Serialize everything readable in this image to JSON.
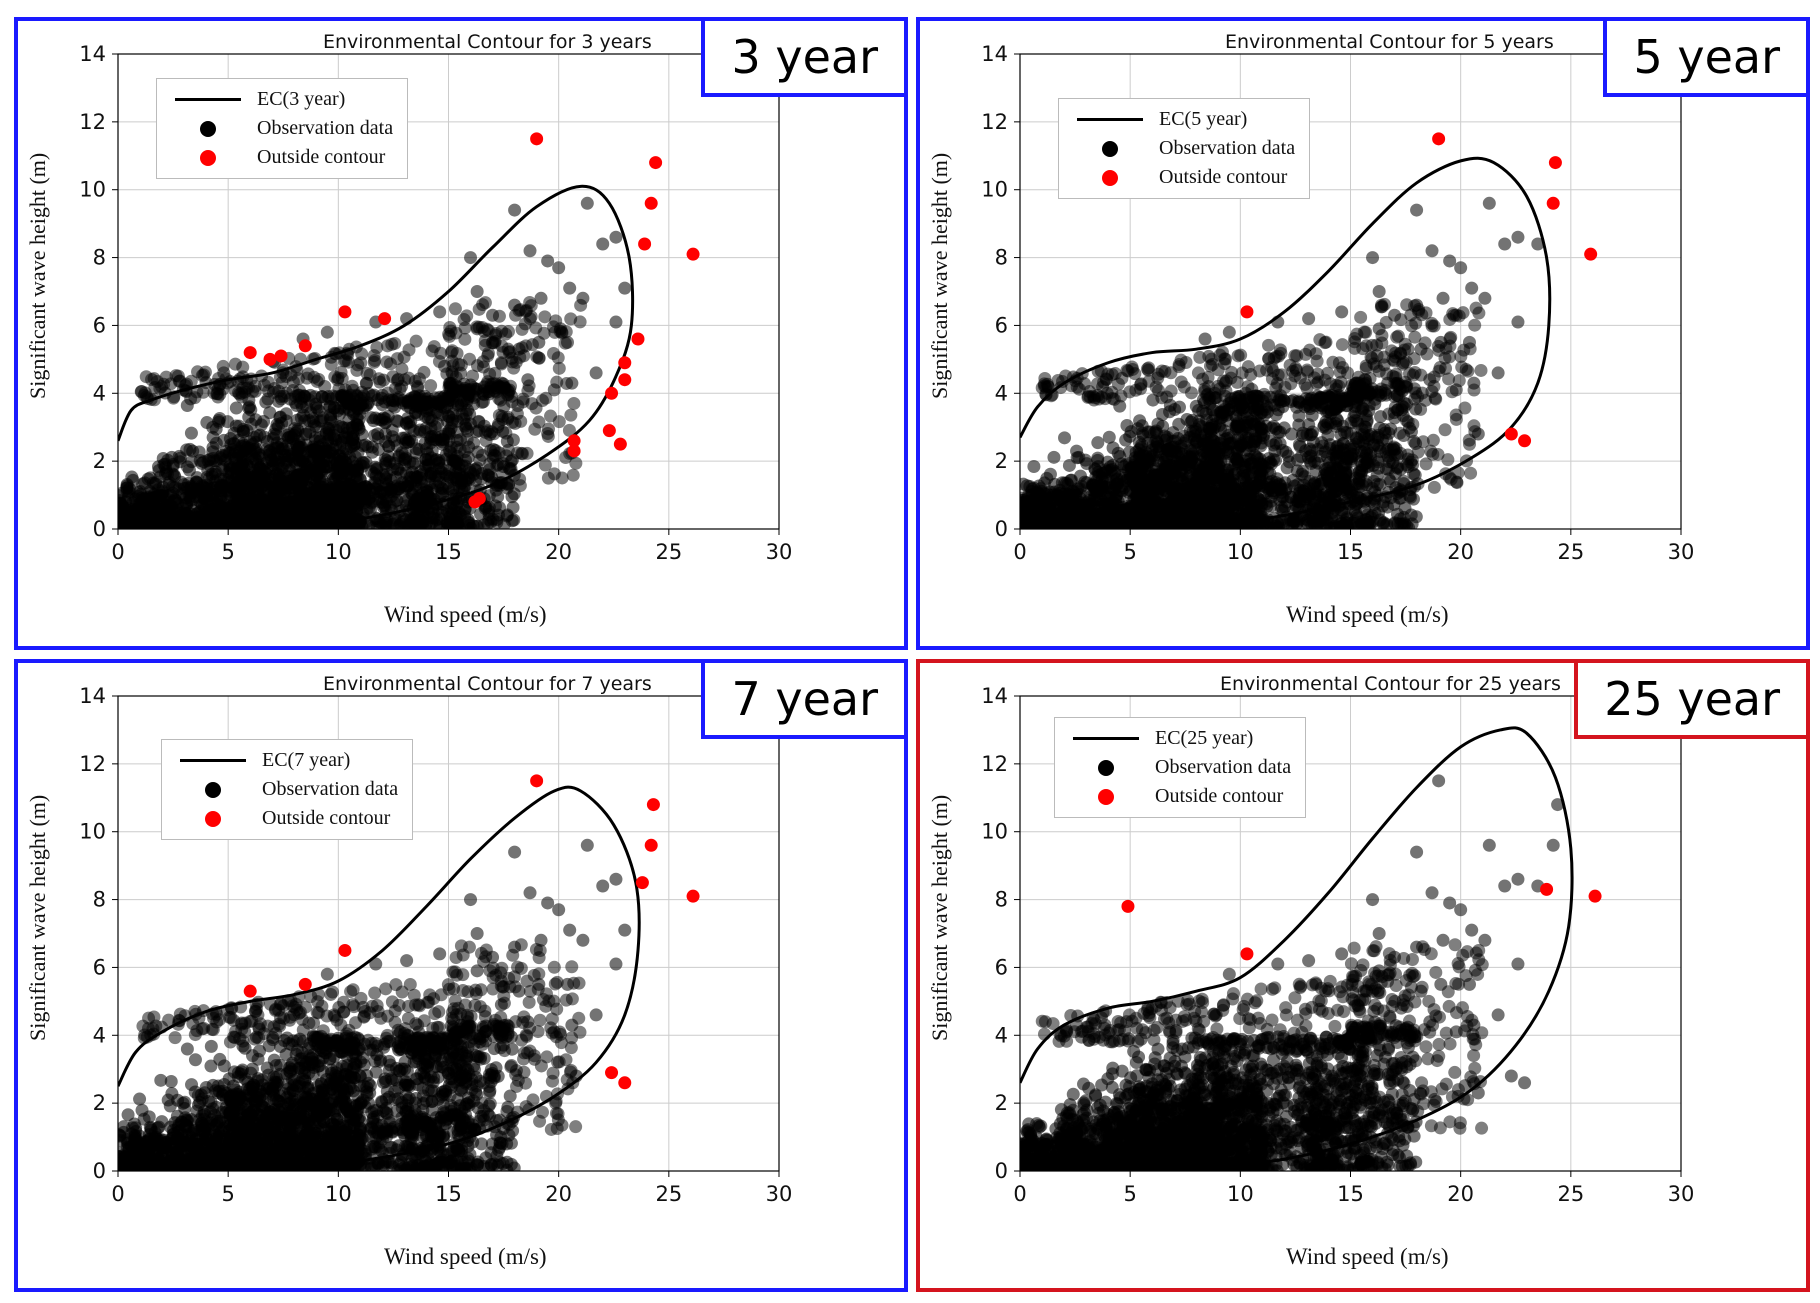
{
  "chart_data": [
    {
      "type": "scatter",
      "badge": "3 year",
      "title": "Environmental Contour for 3 years",
      "xlabel": "Wind speed (m/s)",
      "ylabel": "Significant wave height (m)",
      "xlim": [
        0,
        30
      ],
      "ylim": [
        0,
        14
      ],
      "xticks": [
        "0",
        "5",
        "10",
        "15",
        "20",
        "25",
        "30"
      ],
      "yticks": [
        "0",
        "2",
        "4",
        "6",
        "8",
        "10",
        "12",
        "14"
      ],
      "legend": [
        "EC(3 year)",
        "Observation data",
        "Outside contour"
      ],
      "contour": [
        [
          0,
          2.6
        ],
        [
          0.6,
          3.5
        ],
        [
          1.5,
          3.8
        ],
        [
          3,
          4.1
        ],
        [
          5,
          4.4
        ],
        [
          7,
          4.6
        ],
        [
          9,
          5.0
        ],
        [
          11,
          5.4
        ],
        [
          13,
          6.0
        ],
        [
          15,
          7.0
        ],
        [
          17,
          8.3
        ],
        [
          19,
          9.5
        ],
        [
          21,
          10.1
        ],
        [
          22.3,
          9.6
        ],
        [
          23.2,
          8.0
        ],
        [
          23.3,
          6.0
        ],
        [
          22.6,
          4.5
        ],
        [
          21.4,
          3.2
        ],
        [
          19.5,
          2.2
        ],
        [
          17,
          1.3
        ],
        [
          14,
          0.7
        ],
        [
          11,
          0.3
        ],
        [
          8,
          0.1
        ],
        [
          5,
          0.02
        ],
        [
          2,
          0.0
        ],
        [
          0,
          0.0
        ]
      ],
      "outside_points": [
        [
          6,
          5.2
        ],
        [
          6.9,
          5.0
        ],
        [
          7.4,
          5.1
        ],
        [
          8.5,
          5.4
        ],
        [
          10.3,
          6.4
        ],
        [
          12.1,
          6.2
        ],
        [
          16.2,
          0.8
        ],
        [
          16.4,
          0.9
        ],
        [
          19,
          11.5
        ],
        [
          20.7,
          2.6
        ],
        [
          20.7,
          2.3
        ],
        [
          22.4,
          4.0
        ],
        [
          22.8,
          2.5
        ],
        [
          22.3,
          2.9
        ],
        [
          23,
          4.4
        ],
        [
          23,
          4.9
        ],
        [
          23.6,
          5.6
        ],
        [
          23.9,
          8.4
        ],
        [
          24.2,
          9.6
        ],
        [
          24.4,
          10.8
        ],
        [
          26.1,
          8.1
        ]
      ],
      "observation_points_extra": [
        [
          16,
          8
        ],
        [
          18,
          9.4
        ],
        [
          18.7,
          8.2
        ],
        [
          19.5,
          7.9
        ],
        [
          20,
          7.7
        ],
        [
          21.3,
          9.6
        ],
        [
          22,
          8.4
        ],
        [
          22.6,
          8.6
        ],
        [
          23,
          7.1
        ],
        [
          20.5,
          7.1
        ],
        [
          19.2,
          6.8
        ],
        [
          18,
          6.6
        ],
        [
          17,
          6.3
        ],
        [
          16.3,
          7.0
        ],
        [
          21.1,
          6.8
        ],
        [
          22.6,
          6.1
        ],
        [
          20.4,
          5.5
        ],
        [
          19.1,
          5.5
        ],
        [
          18.2,
          5.3
        ],
        [
          17.4,
          4.9
        ],
        [
          16.3,
          5.9
        ],
        [
          14.6,
          6.4
        ],
        [
          13.1,
          6.2
        ],
        [
          11.7,
          6.1
        ],
        [
          9.5,
          5.8
        ],
        [
          8.4,
          5.6
        ],
        [
          21.7,
          4.6
        ],
        [
          20.6,
          4.3
        ],
        [
          19.8,
          4.1
        ],
        [
          18.6,
          4.4
        ],
        [
          17.5,
          4.2
        ]
      ]
    },
    {
      "type": "scatter",
      "badge": "5 year",
      "title": "Environmental Contour for 5 years",
      "xlabel": "Wind speed (m/s)",
      "ylabel": "Significant wave height (m)",
      "xlim": [
        0,
        30
      ],
      "ylim": [
        0,
        14
      ],
      "xticks": [
        "0",
        "5",
        "10",
        "15",
        "20",
        "25",
        "30"
      ],
      "yticks": [
        "0",
        "2",
        "4",
        "6",
        "8",
        "10",
        "12",
        "14"
      ],
      "legend": [
        "EC(5 year)",
        "Observation data",
        "Outside contour"
      ],
      "contour": [
        [
          0,
          2.7
        ],
        [
          0.8,
          3.6
        ],
        [
          2,
          4.3
        ],
        [
          4,
          4.9
        ],
        [
          6,
          5.2
        ],
        [
          8,
          5.3
        ],
        [
          10,
          5.6
        ],
        [
          12,
          6.4
        ],
        [
          14,
          7.6
        ],
        [
          16,
          9.0
        ],
        [
          18,
          10.2
        ],
        [
          20,
          10.85
        ],
        [
          21.5,
          10.8
        ],
        [
          23,
          9.8
        ],
        [
          23.9,
          8.0
        ],
        [
          24,
          6.0
        ],
        [
          23.5,
          4.3
        ],
        [
          22.3,
          3.0
        ],
        [
          20.5,
          2.1
        ],
        [
          18,
          1.3
        ],
        [
          15,
          0.8
        ],
        [
          12,
          0.4
        ],
        [
          9,
          0.15
        ],
        [
          6,
          0.05
        ],
        [
          3,
          0.0
        ],
        [
          0,
          0.0
        ]
      ],
      "outside_points": [
        [
          10.3,
          6.4
        ],
        [
          19,
          11.5
        ],
        [
          22.3,
          2.8
        ],
        [
          22.9,
          2.6
        ],
        [
          24.2,
          9.6
        ],
        [
          24.3,
          10.8
        ],
        [
          25.9,
          8.1
        ]
      ],
      "observation_points_extra": [
        [
          16,
          8
        ],
        [
          18,
          9.4
        ],
        [
          18.7,
          8.2
        ],
        [
          19.5,
          7.9
        ],
        [
          20,
          7.7
        ],
        [
          21.3,
          9.6
        ],
        [
          22,
          8.4
        ],
        [
          22.6,
          8.6
        ],
        [
          23.5,
          8.4
        ],
        [
          20.5,
          7.1
        ],
        [
          19.2,
          6.8
        ],
        [
          18,
          6.6
        ],
        [
          17,
          6.3
        ],
        [
          16.3,
          7.0
        ],
        [
          21.1,
          6.8
        ],
        [
          22.6,
          6.1
        ],
        [
          20.4,
          5.5
        ],
        [
          19.1,
          5.5
        ],
        [
          18.2,
          5.3
        ],
        [
          17.4,
          4.9
        ],
        [
          16.3,
          5.9
        ],
        [
          14.6,
          6.4
        ],
        [
          13.1,
          6.2
        ],
        [
          11.7,
          6.1
        ],
        [
          9.5,
          5.8
        ],
        [
          8.4,
          5.6
        ],
        [
          21.7,
          4.6
        ],
        [
          20.6,
          4.3
        ],
        [
          19.8,
          4.1
        ],
        [
          18.6,
          4.4
        ],
        [
          17.5,
          4.2
        ],
        [
          20.8,
          2.8
        ],
        [
          16.5,
          0.8
        ],
        [
          16.1,
          0.85
        ]
      ]
    },
    {
      "type": "scatter",
      "badge": "7 year",
      "title": "Environmental Contour for 7 years",
      "xlabel": "Wind speed (m/s)",
      "ylabel": "Significant wave height (m)",
      "xlim": [
        0,
        30
      ],
      "ylim": [
        0,
        14
      ],
      "xticks": [
        "0",
        "5",
        "10",
        "15",
        "20",
        "25",
        "30"
      ],
      "yticks": [
        "0",
        "2",
        "4",
        "6",
        "8",
        "10",
        "12",
        "14"
      ],
      "legend": [
        "EC(7 year)",
        "Observation data",
        "Outside contour"
      ],
      "contour": [
        [
          0,
          2.5
        ],
        [
          0.8,
          3.5
        ],
        [
          2,
          4.1
        ],
        [
          4,
          4.7
        ],
        [
          6,
          5.0
        ],
        [
          8,
          5.2
        ],
        [
          10,
          5.6
        ],
        [
          12,
          6.5
        ],
        [
          14,
          7.8
        ],
        [
          16,
          9.2
        ],
        [
          18,
          10.4
        ],
        [
          19.8,
          11.2
        ],
        [
          21,
          11.2
        ],
        [
          22.5,
          10.2
        ],
        [
          23.5,
          8.5
        ],
        [
          23.6,
          6.5
        ],
        [
          23,
          4.6
        ],
        [
          21.7,
          3.2
        ],
        [
          19.8,
          2.2
        ],
        [
          17.5,
          1.4
        ],
        [
          15,
          0.8
        ],
        [
          12,
          0.4
        ],
        [
          9,
          0.15
        ],
        [
          6,
          0.05
        ],
        [
          3,
          0.0
        ],
        [
          0,
          0.0
        ]
      ],
      "outside_points": [
        [
          6,
          5.3
        ],
        [
          8.5,
          5.5
        ],
        [
          10.3,
          6.5
        ],
        [
          19,
          11.5
        ],
        [
          22.4,
          2.9
        ],
        [
          23,
          2.6
        ],
        [
          23.8,
          8.5
        ],
        [
          24.2,
          9.6
        ],
        [
          24.3,
          10.8
        ],
        [
          26.1,
          8.1
        ]
      ],
      "observation_points_extra": [
        [
          16,
          8
        ],
        [
          18,
          9.4
        ],
        [
          18.7,
          8.2
        ],
        [
          19.5,
          7.9
        ],
        [
          20,
          7.7
        ],
        [
          21.3,
          9.6
        ],
        [
          22,
          8.4
        ],
        [
          22.6,
          8.6
        ],
        [
          23,
          7.1
        ],
        [
          20.5,
          7.1
        ],
        [
          19.2,
          6.8
        ],
        [
          18,
          6.6
        ],
        [
          17,
          6.3
        ],
        [
          16.3,
          7.0
        ],
        [
          21.1,
          6.8
        ],
        [
          22.6,
          6.1
        ],
        [
          20.4,
          5.5
        ],
        [
          19.1,
          5.5
        ],
        [
          18.2,
          5.3
        ],
        [
          17.4,
          4.9
        ],
        [
          16.3,
          5.9
        ],
        [
          14.6,
          6.4
        ],
        [
          13.1,
          6.2
        ],
        [
          11.7,
          6.1
        ],
        [
          9.5,
          5.8
        ],
        [
          21.7,
          4.6
        ],
        [
          20.6,
          4.3
        ],
        [
          19.8,
          4.1
        ],
        [
          18.6,
          4.4
        ],
        [
          17.5,
          4.2
        ],
        [
          20.8,
          2.8
        ],
        [
          16.5,
          0.8
        ],
        [
          16.1,
          0.85
        ]
      ]
    },
    {
      "type": "scatter",
      "badge": "25 year",
      "title": "Environmental Contour for 25 years",
      "xlabel": "Wind speed (m/s)",
      "ylabel": "Significant wave height (m)",
      "xlim": [
        0,
        30
      ],
      "ylim": [
        0,
        14
      ],
      "xticks": [
        "0",
        "5",
        "10",
        "15",
        "20",
        "25",
        "30"
      ],
      "yticks": [
        "0",
        "2",
        "4",
        "6",
        "8",
        "10",
        "12",
        "14"
      ],
      "legend": [
        "EC(25 year)",
        "Observation data",
        "Outside contour"
      ],
      "contour": [
        [
          0,
          2.6
        ],
        [
          0.8,
          3.6
        ],
        [
          2,
          4.3
        ],
        [
          4,
          4.8
        ],
        [
          6,
          5.0
        ],
        [
          8,
          5.3
        ],
        [
          10,
          5.7
        ],
        [
          12,
          6.8
        ],
        [
          14,
          8.2
        ],
        [
          16,
          9.8
        ],
        [
          18,
          11.3
        ],
        [
          20,
          12.5
        ],
        [
          21.8,
          13.0
        ],
        [
          23,
          12.9
        ],
        [
          24.3,
          11.6
        ],
        [
          25,
          9.5
        ],
        [
          24.9,
          7.2
        ],
        [
          24,
          5.3
        ],
        [
          22.5,
          3.7
        ],
        [
          20.5,
          2.4
        ],
        [
          18,
          1.5
        ],
        [
          15,
          0.8
        ],
        [
          12,
          0.35
        ],
        [
          9,
          0.12
        ],
        [
          6,
          0.03
        ],
        [
          3,
          0.0
        ],
        [
          0,
          0.0
        ]
      ],
      "outside_points": [
        [
          4.9,
          7.8
        ],
        [
          10.3,
          6.4
        ],
        [
          23.9,
          8.3
        ],
        [
          26.1,
          8.1
        ]
      ],
      "observation_points_extra": [
        [
          16,
          8
        ],
        [
          18,
          9.4
        ],
        [
          18.7,
          8.2
        ],
        [
          19.5,
          7.9
        ],
        [
          20,
          7.7
        ],
        [
          21.3,
          9.6
        ],
        [
          22,
          8.4
        ],
        [
          22.6,
          8.6
        ],
        [
          23.5,
          8.4
        ],
        [
          20.5,
          7.1
        ],
        [
          19.2,
          6.8
        ],
        [
          18,
          6.6
        ],
        [
          17,
          6.3
        ],
        [
          16.3,
          7.0
        ],
        [
          21.1,
          6.8
        ],
        [
          22.6,
          6.1
        ],
        [
          20.4,
          5.5
        ],
        [
          19.1,
          5.5
        ],
        [
          18.2,
          5.3
        ],
        [
          17.4,
          4.9
        ],
        [
          16.3,
          5.9
        ],
        [
          14.6,
          6.4
        ],
        [
          13.1,
          6.2
        ],
        [
          11.7,
          6.1
        ],
        [
          9.5,
          5.8
        ],
        [
          21.7,
          4.6
        ],
        [
          20.6,
          4.3
        ],
        [
          19.8,
          4.1
        ],
        [
          18.6,
          4.4
        ],
        [
          17.5,
          4.2
        ],
        [
          20.8,
          2.3
        ],
        [
          16.5,
          0.8
        ],
        [
          16.1,
          0.85
        ],
        [
          19,
          11.5
        ],
        [
          24.2,
          9.6
        ],
        [
          24.4,
          10.8
        ],
        [
          22.3,
          2.8
        ],
        [
          22.9,
          2.6
        ]
      ]
    }
  ],
  "colors": {
    "panel_border": "#1a1aff",
    "panel_border_highlight": "#d4141e",
    "outside": "#ff0000",
    "observation": "#000000",
    "contour": "#000000",
    "grid": "#cccccc"
  }
}
